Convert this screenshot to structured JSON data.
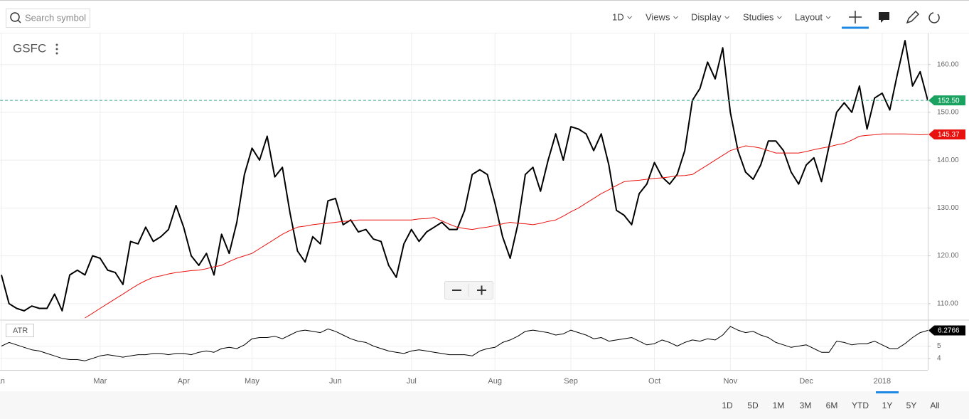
{
  "toolbar": {
    "search_placeholder": "Search symbol",
    "menus": [
      "1D",
      "Views",
      "Display",
      "Studies",
      "Layout"
    ]
  },
  "chart_data": [
    {
      "type": "line",
      "title": "GSFC",
      "series": [
        {
          "color": "#000000",
          "label_color": "#1aa260",
          "last_label": "152.50",
          "price_line": true,
          "values": [
            116,
            110,
            109,
            108.5,
            109.5,
            109,
            109,
            112,
            108.5,
            116,
            117,
            116,
            120,
            119.5,
            117,
            116.5,
            114,
            123,
            122.5,
            126,
            123,
            124,
            125.5,
            130.5,
            126,
            120,
            118,
            120.5,
            116,
            124.5,
            120.5,
            127,
            137,
            142.5,
            140,
            145,
            136.5,
            138.5,
            129,
            121,
            118.7,
            124,
            122.5,
            131.5,
            132,
            126.5,
            127.5,
            125,
            125.5,
            123.5,
            123,
            118,
            115.5,
            122.5,
            125.5,
            123,
            125,
            126,
            127,
            125.5,
            125.5,
            129.5,
            137,
            138,
            137,
            131,
            124,
            119.5,
            126.5,
            137,
            138.5,
            133.5,
            140,
            145.5,
            140,
            147,
            146.5,
            145.5,
            142,
            145.5,
            139,
            129.5,
            128.5,
            126.5,
            133,
            135,
            139.5,
            136.5,
            135,
            137,
            142,
            152.5,
            155,
            160.5,
            157,
            163.5,
            150,
            142,
            137.5,
            136,
            139,
            144,
            144,
            142,
            137.5,
            135,
            139,
            140.5,
            135.5,
            143,
            150,
            152,
            150,
            155.5,
            146.5,
            153,
            154,
            150.5,
            158,
            165,
            155.5,
            158.5,
            152.5
          ]
        },
        {
          "color": "#e8130f",
          "label_color": "#e8130f",
          "last_label": "145.37",
          "values": [
            null,
            null,
            null,
            null,
            null,
            null,
            null,
            null,
            null,
            null,
            null,
            107,
            108,
            109,
            110,
            111,
            112,
            113,
            114,
            114.8,
            115.5,
            115.8,
            116.2,
            116.5,
            116.7,
            116.9,
            117,
            117.3,
            117.7,
            118,
            118.8,
            119.5,
            120,
            120.5,
            121.5,
            122.5,
            123.5,
            124.5,
            125.3,
            126,
            126.2,
            126.5,
            126.7,
            126.8,
            127,
            127.2,
            127.3,
            127.5,
            127.5,
            127.5,
            127.5,
            127.5,
            127.5,
            127.5,
            127.5,
            127.7,
            127.8,
            128,
            127.3,
            126.6,
            126,
            125.7,
            125.5,
            125.8,
            126,
            126.3,
            126.7,
            127,
            126.8,
            126.7,
            126.5,
            126.8,
            127.2,
            127.5,
            128.3,
            129.2,
            130,
            131,
            132,
            133,
            133.8,
            134.7,
            135.5,
            135.7,
            135.8,
            136,
            136.2,
            136.3,
            136.5,
            136.7,
            136.8,
            137,
            138,
            139,
            140,
            141,
            142,
            142.5,
            143,
            142.8,
            142.5,
            142,
            141.5,
            141.5,
            141.5,
            141.5,
            141.8,
            142.2,
            142.5,
            142.8,
            143.2,
            143.5,
            144.2,
            145,
            145.2,
            145.3,
            145.5,
            145.5,
            145.5,
            145.5,
            145.4,
            145.3,
            145.37
          ]
        }
      ],
      "ylim": [
        106.7,
        166.5
      ],
      "yticks": [
        {
          "value": 110,
          "label": "110.00"
        },
        {
          "value": 120,
          "label": "120.00"
        },
        {
          "value": 130,
          "label": "130.00"
        },
        {
          "value": 140,
          "label": "140.00"
        },
        {
          "value": 150,
          "label": "150.00"
        },
        {
          "value": 160,
          "label": "160.00"
        }
      ],
      "grid": true
    },
    {
      "type": "line",
      "title": "ATR",
      "categories": [
        "Jan",
        null,
        null,
        null,
        null,
        null,
        null,
        null,
        null,
        null,
        null,
        null,
        null,
        "Mar",
        null,
        null,
        null,
        null,
        null,
        null,
        null,
        null,
        null,
        null,
        "Apr",
        null,
        null,
        null,
        null,
        null,
        null,
        null,
        null,
        "May",
        null,
        null,
        null,
        null,
        null,
        null,
        null,
        null,
        null,
        null,
        "Jun",
        null,
        null,
        null,
        null,
        null,
        null,
        null,
        null,
        null,
        "Jul",
        null,
        null,
        null,
        null,
        null,
        null,
        null,
        null,
        null,
        null,
        "Aug",
        null,
        null,
        null,
        null,
        null,
        null,
        null,
        null,
        null,
        "Sep",
        null,
        null,
        null,
        null,
        null,
        null,
        null,
        null,
        null,
        null,
        "Oct",
        null,
        null,
        null,
        null,
        null,
        null,
        null,
        null,
        null,
        "Nov",
        null,
        null,
        null,
        null,
        null,
        null,
        null,
        null,
        null,
        "Dec",
        null,
        null,
        null,
        null,
        null,
        null,
        null,
        null,
        null,
        "2018",
        null,
        null,
        null,
        null,
        null,
        null
      ],
      "series": [
        {
          "color": "#000000",
          "label_color": "#000000",
          "last_label": "6.2766",
          "values": [
            5.0,
            5.3,
            5.1,
            4.9,
            4.7,
            4.6,
            4.4,
            4.2,
            4.0,
            3.9,
            3.9,
            3.8,
            4.0,
            4.2,
            4.3,
            4.2,
            4.1,
            4.2,
            4.3,
            4.3,
            4.4,
            4.4,
            4.3,
            4.4,
            4.4,
            4.3,
            4.5,
            4.6,
            4.5,
            4.8,
            4.9,
            4.8,
            5.1,
            5.6,
            5.7,
            5.7,
            5.8,
            5.6,
            5.9,
            6.2,
            6.3,
            6.2,
            6.1,
            6.4,
            6.2,
            5.9,
            5.6,
            5.4,
            5.3,
            5.0,
            4.8,
            4.6,
            4.5,
            4.4,
            4.6,
            4.7,
            4.6,
            4.5,
            4.4,
            4.3,
            4.3,
            4.3,
            4.2,
            4.6,
            4.8,
            4.9,
            5.3,
            5.5,
            5.8,
            6.2,
            6.3,
            6.2,
            6.1,
            5.9,
            6.0,
            6.3,
            6.1,
            5.9,
            5.6,
            5.7,
            5.4,
            5.5,
            5.6,
            5.7,
            5.4,
            5.1,
            5.2,
            5.5,
            5.3,
            5.0,
            5.3,
            5.5,
            5.4,
            5.6,
            5.5,
            5.9,
            6.6,
            6.3,
            6.1,
            6.2,
            5.9,
            5.7,
            5.3,
            5.1,
            4.9,
            5.0,
            5.1,
            4.8,
            4.5,
            4.5,
            5.4,
            5.3,
            5.1,
            5.2,
            5.2,
            5.4,
            5.1,
            4.8,
            4.8,
            5.2,
            5.7,
            6.1,
            6.2766
          ]
        }
      ],
      "ylim": [
        3.06,
        7.06
      ],
      "yticks": [
        4,
        5
      ],
      "grid": true
    }
  ],
  "range_buttons": [
    "1D",
    "5D",
    "1M",
    "3M",
    "6M",
    "YTD",
    "1Y",
    "5Y",
    "All"
  ],
  "selected_range_index": 6
}
